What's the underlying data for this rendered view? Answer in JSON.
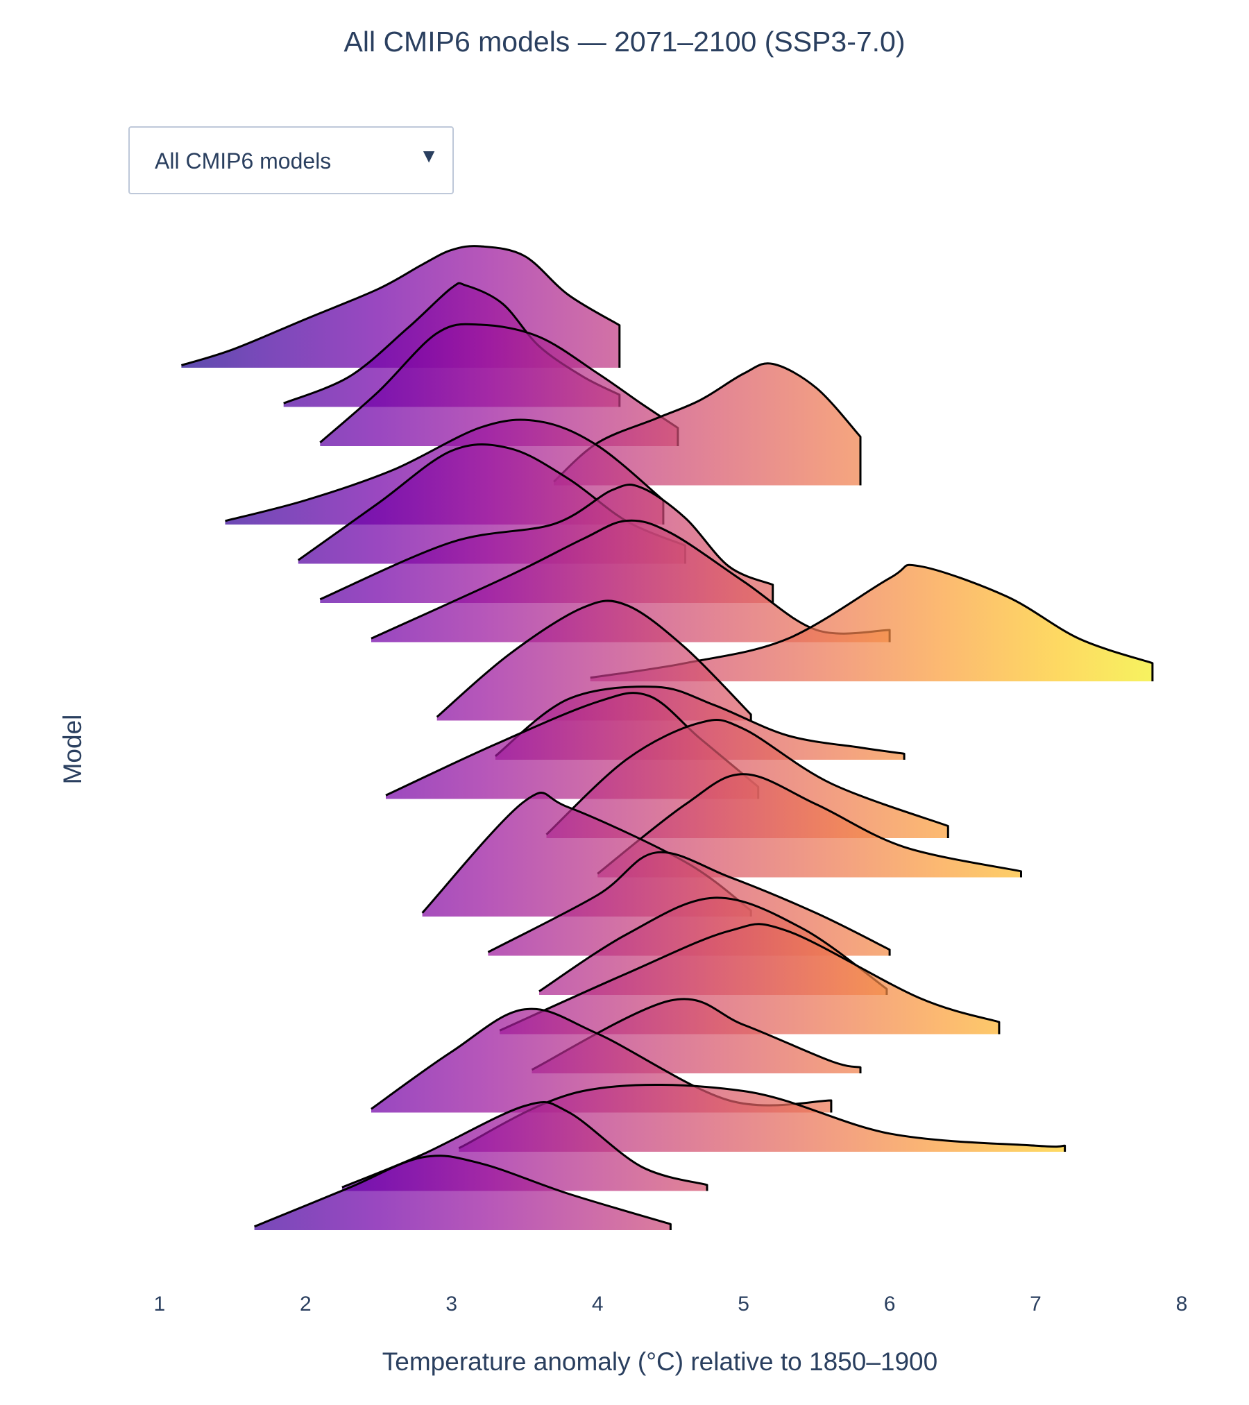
{
  "chart_data": {
    "type": "ridgeline",
    "title": "All CMIP6 models — 2071–2100 (SSP3-7.0)",
    "xlabel": "Temperature anomaly (°C) relative to 1850–1900",
    "ylabel": "Model",
    "xlim": [
      0.92,
      8.0
    ],
    "xticks": [
      1,
      2,
      3,
      4,
      5,
      6,
      7,
      8
    ],
    "colorscale": "plasma",
    "legend": "none",
    "grid": false,
    "series": [
      {
        "points": [
          [
            1.15,
            0.02
          ],
          [
            1.5,
            0.15
          ],
          [
            2.0,
            0.4
          ],
          [
            2.5,
            0.65
          ],
          [
            2.8,
            0.85
          ],
          [
            3.0,
            0.97
          ],
          [
            3.2,
            1.0
          ],
          [
            3.5,
            0.92
          ],
          [
            3.8,
            0.6
          ],
          [
            4.15,
            0.35
          ]
        ]
      },
      {
        "points": [
          [
            1.85,
            0.03
          ],
          [
            2.3,
            0.25
          ],
          [
            2.7,
            0.65
          ],
          [
            3.0,
            0.98
          ],
          [
            3.1,
            1.0
          ],
          [
            3.35,
            0.85
          ],
          [
            3.6,
            0.5
          ],
          [
            3.9,
            0.25
          ],
          [
            4.15,
            0.1
          ]
        ]
      },
      {
        "points": [
          [
            2.1,
            0.03
          ],
          [
            2.5,
            0.45
          ],
          [
            2.9,
            0.93
          ],
          [
            3.2,
            1.0
          ],
          [
            3.6,
            0.9
          ],
          [
            4.0,
            0.6
          ],
          [
            4.3,
            0.35
          ],
          [
            4.55,
            0.15
          ]
        ]
      },
      {
        "points": [
          [
            3.7,
            0.03
          ],
          [
            4.0,
            0.35
          ],
          [
            4.4,
            0.55
          ],
          [
            4.7,
            0.7
          ],
          [
            5.0,
            0.92
          ],
          [
            5.2,
            1.0
          ],
          [
            5.5,
            0.8
          ],
          [
            5.8,
            0.4
          ]
        ]
      },
      {
        "points": [
          [
            1.45,
            0.03
          ],
          [
            2.0,
            0.2
          ],
          [
            2.6,
            0.45
          ],
          [
            3.2,
            0.8
          ],
          [
            3.6,
            0.85
          ],
          [
            4.0,
            0.65
          ],
          [
            4.45,
            0.2
          ]
        ]
      },
      {
        "points": [
          [
            1.95,
            0.03
          ],
          [
            2.5,
            0.5
          ],
          [
            3.0,
            0.93
          ],
          [
            3.4,
            0.95
          ],
          [
            3.8,
            0.7
          ],
          [
            4.2,
            0.35
          ],
          [
            4.6,
            0.15
          ]
        ]
      },
      {
        "points": [
          [
            2.1,
            0.03
          ],
          [
            3.0,
            0.5
          ],
          [
            3.7,
            0.65
          ],
          [
            4.1,
            0.93
          ],
          [
            4.3,
            0.95
          ],
          [
            4.6,
            0.7
          ],
          [
            4.9,
            0.3
          ],
          [
            5.2,
            0.15
          ]
        ]
      },
      {
        "points": [
          [
            2.45,
            0.03
          ],
          [
            3.4,
            0.55
          ],
          [
            3.9,
            0.85
          ],
          [
            4.2,
            1.0
          ],
          [
            4.5,
            0.9
          ],
          [
            5.0,
            0.5
          ],
          [
            5.5,
            0.1
          ],
          [
            6.0,
            0.1
          ]
        ]
      },
      {
        "points": [
          [
            3.95,
            0.03
          ],
          [
            4.6,
            0.15
          ],
          [
            5.3,
            0.35
          ],
          [
            6.0,
            0.85
          ],
          [
            6.2,
            0.95
          ],
          [
            6.8,
            0.7
          ],
          [
            7.3,
            0.35
          ],
          [
            7.8,
            0.15
          ]
        ]
      },
      {
        "points": [
          [
            2.9,
            0.03
          ],
          [
            3.4,
            0.55
          ],
          [
            3.9,
            0.93
          ],
          [
            4.2,
            0.95
          ],
          [
            4.6,
            0.6
          ],
          [
            5.05,
            0.05
          ]
        ]
      },
      {
        "points": [
          [
            3.3,
            0.03
          ],
          [
            3.8,
            0.5
          ],
          [
            4.4,
            0.6
          ],
          [
            4.8,
            0.45
          ],
          [
            5.3,
            0.2
          ],
          [
            5.8,
            0.1
          ],
          [
            6.1,
            0.05
          ]
        ]
      },
      {
        "points": [
          [
            2.55,
            0.03
          ],
          [
            3.3,
            0.45
          ],
          [
            4.0,
            0.8
          ],
          [
            4.35,
            0.85
          ],
          [
            4.7,
            0.5
          ],
          [
            5.1,
            0.1
          ]
        ]
      },
      {
        "points": [
          [
            3.65,
            0.03
          ],
          [
            4.2,
            0.65
          ],
          [
            4.7,
            0.95
          ],
          [
            5.0,
            0.9
          ],
          [
            5.6,
            0.45
          ],
          [
            6.4,
            0.1
          ]
        ]
      },
      {
        "points": [
          [
            4.0,
            0.03
          ],
          [
            4.6,
            0.6
          ],
          [
            5.0,
            0.85
          ],
          [
            5.5,
            0.6
          ],
          [
            6.1,
            0.25
          ],
          [
            6.9,
            0.05
          ]
        ]
      },
      {
        "points": [
          [
            2.8,
            0.03
          ],
          [
            3.5,
            0.95
          ],
          [
            3.8,
            0.9
          ],
          [
            4.6,
            0.45
          ],
          [
            5.05,
            0.05
          ]
        ]
      },
      {
        "points": [
          [
            3.25,
            0.03
          ],
          [
            4.0,
            0.5
          ],
          [
            4.4,
            0.85
          ],
          [
            4.9,
            0.65
          ],
          [
            5.5,
            0.35
          ],
          [
            6.0,
            0.05
          ]
        ]
      },
      {
        "points": [
          [
            3.6,
            0.03
          ],
          [
            4.2,
            0.5
          ],
          [
            4.8,
            0.8
          ],
          [
            5.4,
            0.55
          ],
          [
            5.98,
            0.05
          ]
        ]
      },
      {
        "points": [
          [
            3.33,
            0.03
          ],
          [
            4.2,
            0.5
          ],
          [
            4.9,
            0.85
          ],
          [
            5.3,
            0.85
          ],
          [
            6.2,
            0.3
          ],
          [
            6.75,
            0.1
          ]
        ]
      },
      {
        "points": [
          [
            3.55,
            0.03
          ],
          [
            4.5,
            0.6
          ],
          [
            5.0,
            0.4
          ],
          [
            5.6,
            0.1
          ],
          [
            5.8,
            0.05
          ]
        ]
      },
      {
        "points": [
          [
            2.45,
            0.03
          ],
          [
            3.0,
            0.5
          ],
          [
            3.5,
            0.85
          ],
          [
            4.0,
            0.65
          ],
          [
            4.9,
            0.1
          ],
          [
            5.6,
            0.1
          ]
        ]
      },
      {
        "points": [
          [
            3.05,
            0.03
          ],
          [
            3.9,
            0.5
          ],
          [
            5.0,
            0.5
          ],
          [
            6.0,
            0.15
          ],
          [
            7.0,
            0.05
          ],
          [
            7.2,
            0.05
          ]
        ]
      },
      {
        "points": [
          [
            2.25,
            0.03
          ],
          [
            2.8,
            0.3
          ],
          [
            3.5,
            0.7
          ],
          [
            3.8,
            0.65
          ],
          [
            4.3,
            0.2
          ],
          [
            4.75,
            0.05
          ]
        ]
      },
      {
        "points": [
          [
            1.65,
            0.03
          ],
          [
            2.3,
            0.35
          ],
          [
            2.8,
            0.6
          ],
          [
            3.2,
            0.55
          ],
          [
            3.8,
            0.3
          ],
          [
            4.5,
            0.05
          ]
        ]
      }
    ]
  },
  "dropdown": {
    "selected": "All CMIP6 models",
    "arrow_icon": "triangle-down-icon"
  }
}
